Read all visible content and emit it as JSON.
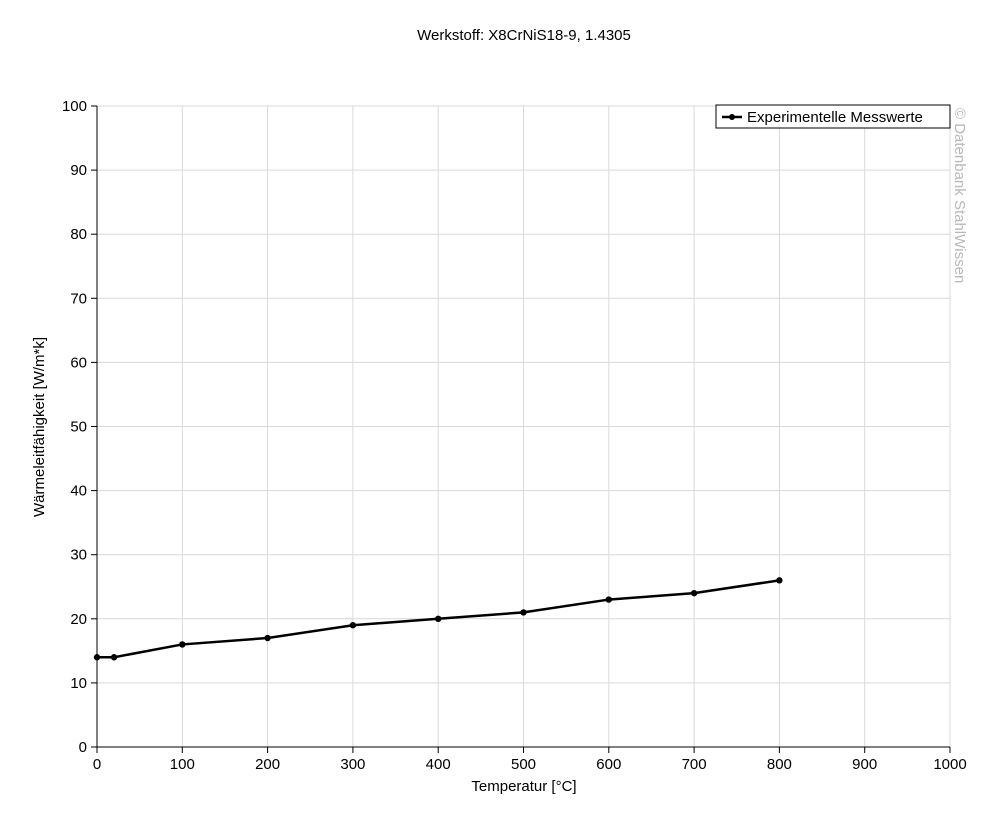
{
  "chart_data": {
    "type": "line",
    "title": "Werkstoff: X8CrNiS18-9, 1.4305",
    "xlabel": "Temperatur [°C]",
    "ylabel": "Wärmeleitfähigkeit [W/m*k]",
    "xlim": [
      0,
      1000
    ],
    "ylim": [
      0,
      100
    ],
    "xticks": [
      0,
      100,
      200,
      300,
      400,
      500,
      600,
      700,
      800,
      900,
      1000
    ],
    "yticks": [
      0,
      10,
      20,
      30,
      40,
      50,
      60,
      70,
      80,
      90,
      100
    ],
    "grid": true,
    "legend_position": "top-right",
    "series": [
      {
        "name": "Experimentelle Messwerte",
        "color": "#000000",
        "x": [
          0,
          20,
          100,
          200,
          300,
          400,
          500,
          600,
          700,
          800
        ],
        "y": [
          14,
          14,
          16,
          17,
          19,
          20,
          21,
          23,
          24,
          26
        ]
      }
    ],
    "watermark": "© Datenbank StahlWissen"
  }
}
